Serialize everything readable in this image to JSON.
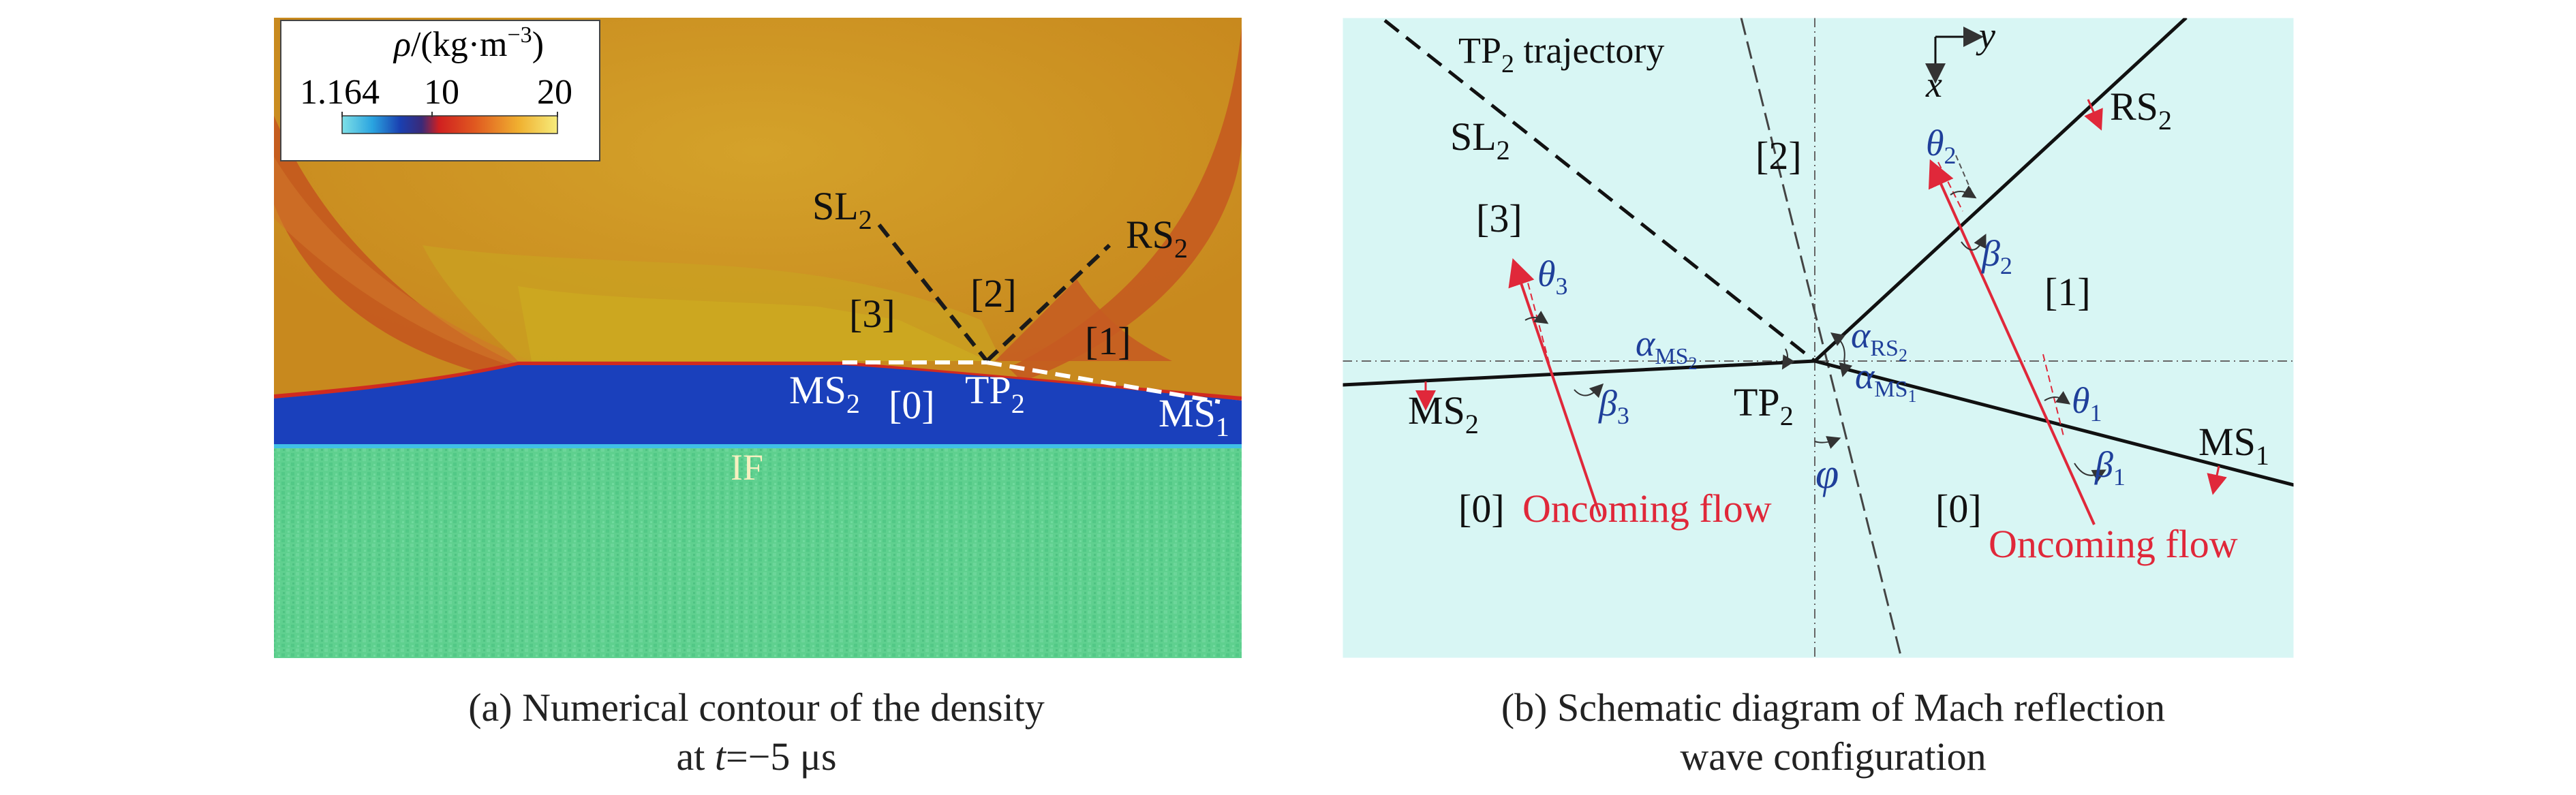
{
  "panel_a": {
    "legend": {
      "title_rho": "ρ",
      "title_units": "/(kg·m",
      "title_exp": "−3",
      "title_close": ")",
      "tick_min": "1.164",
      "tick_mid": "10",
      "tick_max": "20"
    },
    "labels": {
      "sl2": "SL",
      "sl2_sub": "2",
      "rs2": "RS",
      "rs2_sub": "2",
      "region3": "[3]",
      "region2": "[2]",
      "region1": "[1]",
      "region0": "[0]",
      "ms2": "MS",
      "ms2_sub": "2",
      "tp2": "TP",
      "tp2_sub": "2",
      "ms1": "MS",
      "ms1_sub": "1",
      "if": "IF"
    },
    "colors": {
      "upper_gas": "#c98a1e",
      "shocked_gas": "#c6a01c",
      "mach_stem_region": "#1a3fb8",
      "interface_line": "#3fbfe0",
      "lower_gas": "#5ccf8e",
      "bubble_edge": "#c8522a"
    },
    "caption_line1": "(a) Numerical contour of the density",
    "caption_t": "t",
    "caption_line2_rest": "=−5 μs"
  },
  "panel_b": {
    "labels": {
      "tp2_traj": "TP",
      "tp2_traj_sub": "2",
      "tp2_traj_rest": " trajectory",
      "sl2": "SL",
      "sl2_sub": "2",
      "region2": "[2]",
      "region3": "[3]",
      "region1": "[1]",
      "region0_left": "[0]",
      "region0_right": "[0]",
      "rs2": "RS",
      "rs2_sub": "2",
      "ms2": "MS",
      "ms2_sub": "2",
      "ms1": "MS",
      "ms1_sub": "1",
      "tp2": "TP",
      "tp2_sub": "2",
      "axis_y": "y",
      "axis_x": "x",
      "theta2": "θ",
      "theta2_sub": "2",
      "beta2": "β",
      "beta2_sub": "2",
      "theta3": "θ",
      "theta3_sub": "3",
      "beta3": "β",
      "beta3_sub": "3",
      "theta1": "θ",
      "theta1_sub": "1",
      "beta1": "β",
      "beta1_sub": "1",
      "alpha_ms2": "α",
      "alpha_ms2_sub": "MS",
      "alpha_ms2_subsub": "2",
      "alpha_rs2": "α",
      "alpha_rs2_sub": "RS",
      "alpha_rs2_subsub": "2",
      "alpha_ms1": "α",
      "alpha_ms1_sub": "MS",
      "alpha_ms1_subsub": "1",
      "phi": "φ",
      "oncoming_left": "Oncoming flow",
      "oncoming_right": "Oncoming flow"
    },
    "colors": {
      "background": "#d8f6f4",
      "flow": "#e0283a",
      "angle_label": "#1f3f9a"
    },
    "caption_line1": "(b) Schematic diagram of Mach reflection",
    "caption_line2": "wave configuration"
  }
}
